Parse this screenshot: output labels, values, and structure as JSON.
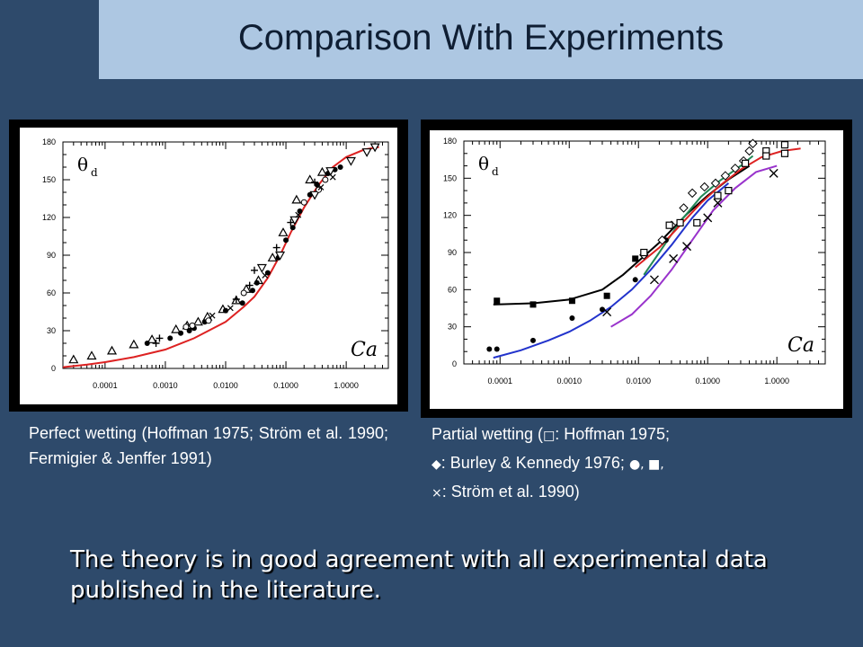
{
  "slide": {
    "title": "Comparison With Experiments",
    "conclusion": "The theory is in good agreement with all experimental data published in the literature."
  },
  "captions": {
    "left": "Perfect wetting (Hoffman 1975; Ström et al. 1990; Fermigier & Jenffer 1991)",
    "right": {
      "line1_prefix": "Partial wetting (",
      "line1_symbol": "□",
      "line1_suffix": ": Hoffman 1975;",
      "line2_symbol": "◆",
      "line2_text": ": Burley & Kennedy 1976;",
      "line2_symbols": "●, ■,",
      "line3_symbol": "×",
      "line3_text": ": Ström et al. 1990)"
    }
  },
  "chart_data": [
    {
      "type": "scatter",
      "xscale": "log",
      "xlim": [
        2e-05,
        5
      ],
      "ylim": [
        0,
        180
      ],
      "xticks": [
        0.0001,
        0.001,
        0.01,
        0.1,
        1
      ],
      "xtick_labels": [
        "0.0001",
        "0.0010",
        "0.0100",
        "0.1000",
        "1.0000"
      ],
      "yticks": [
        0,
        30,
        60,
        90,
        120,
        150,
        180
      ],
      "ytick_labels": [
        "0",
        "30",
        "60",
        "90",
        "120",
        "150",
        "180"
      ],
      "ylabel": "θ",
      "ylabel_sub": "d",
      "xlabel": "Ca",
      "grid": false,
      "series": [
        {
          "name": "",
          "marker": "triangle-up",
          "color": "#000000",
          "points": [
            [
              3e-05,
              7
            ],
            [
              6e-05,
              10
            ],
            [
              0.00013,
              14
            ],
            [
              0.0003,
              19
            ],
            [
              0.0006,
              23
            ],
            [
              0.0015,
              31
            ],
            [
              0.0023,
              34
            ],
            [
              0.0035,
              37
            ],
            [
              0.005,
              41
            ],
            [
              0.009,
              47
            ],
            [
              0.015,
              54
            ],
            [
              0.022,
              63
            ],
            [
              0.035,
              70
            ],
            [
              0.06,
              88
            ],
            [
              0.09,
              108
            ],
            [
              0.15,
              134
            ],
            [
              0.25,
              150
            ],
            [
              0.4,
              156
            ]
          ]
        },
        {
          "name": "",
          "marker": "circle",
          "color": "#000000",
          "points": [
            [
              0.0005,
              20
            ],
            [
              0.0012,
              24
            ],
            [
              0.0018,
              28
            ],
            [
              0.0025,
              30
            ],
            [
              0.003,
              32
            ],
            [
              0.0045,
              37
            ],
            [
              0.01,
              46
            ],
            [
              0.019,
              52
            ],
            [
              0.028,
              62
            ],
            [
              0.033,
              68
            ],
            [
              0.05,
              76
            ],
            [
              0.075,
              88
            ],
            [
              0.1,
              102
            ],
            [
              0.13,
              112
            ],
            [
              0.17,
              125
            ],
            [
              0.25,
              138
            ],
            [
              0.33,
              146
            ],
            [
              0.5,
              155
            ],
            [
              0.65,
              158
            ],
            [
              0.8,
              160
            ]
          ]
        },
        {
          "name": "",
          "marker": "plus",
          "color": "#000000",
          "points": [
            [
              0.0007,
              20
            ],
            [
              0.0008,
              24
            ],
            [
              0.015,
              55
            ],
            [
              0.025,
              66
            ],
            [
              0.03,
              78
            ],
            [
              0.07,
              96
            ],
            [
              0.12,
              116
            ],
            [
              0.3,
              148
            ]
          ]
        },
        {
          "name": "",
          "marker": "triangle-down",
          "color": "#000000",
          "points": [
            [
              0.04,
              80
            ],
            [
              0.08,
              90
            ],
            [
              0.14,
              118
            ],
            [
              0.3,
              138
            ],
            [
              0.55,
              157
            ],
            [
              1.2,
              165
            ],
            [
              2.2,
              172
            ],
            [
              3,
              176
            ]
          ]
        },
        {
          "name": "",
          "marker": "circle-open",
          "color": "#000000",
          "points": [
            [
              0.0022,
              33
            ],
            [
              0.0028,
              34
            ],
            [
              0.0052,
              38
            ],
            [
              0.02,
              60
            ],
            [
              0.2,
              132
            ],
            [
              0.35,
              142
            ],
            [
              0.45,
              150
            ]
          ]
        },
        {
          "name": "",
          "marker": "cross",
          "color": "#000000",
          "points": [
            [
              0.006,
              42
            ],
            [
              0.012,
              48
            ],
            [
              0.045,
              74
            ],
            [
              0.16,
              122
            ],
            [
              0.38,
              144
            ],
            [
              0.6,
              152
            ]
          ]
        }
      ],
      "curves": [
        {
          "name": "",
          "color": "#dd2222",
          "points": [
            [
              2e-05,
              1
            ],
            [
              5e-05,
              3
            ],
            [
              0.0001,
              5
            ],
            [
              0.0003,
              9
            ],
            [
              0.001,
              15
            ],
            [
              0.003,
              24
            ],
            [
              0.01,
              37
            ],
            [
              0.02,
              49
            ],
            [
              0.03,
              57
            ],
            [
              0.05,
              72
            ],
            [
              0.08,
              90
            ],
            [
              0.12,
              108
            ],
            [
              0.2,
              128
            ],
            [
              0.35,
              146
            ],
            [
              0.6,
              160
            ],
            [
              1,
              168
            ],
            [
              2,
              174
            ],
            [
              3.5,
              176
            ]
          ]
        }
      ]
    },
    {
      "type": "scatter",
      "xscale": "log",
      "xlim": [
        3e-05,
        5
      ],
      "ylim": [
        0,
        180
      ],
      "xticks": [
        0.0001,
        0.001,
        0.01,
        0.1,
        1
      ],
      "xtick_labels": [
        "0.0001",
        "0.0010",
        "0.0100",
        "0.1000",
        "1.0000"
      ],
      "yticks": [
        0,
        30,
        60,
        90,
        120,
        150,
        180
      ],
      "ytick_labels": [
        "0",
        "30",
        "60",
        "90",
        "120",
        "150",
        "180"
      ],
      "ylabel": "θ",
      "ylabel_sub": "d",
      "xlabel": "Ca",
      "grid": false,
      "series": [
        {
          "name": "",
          "marker": "square",
          "color": "#000000",
          "points": [
            [
              9e-05,
              51
            ],
            [
              0.0003,
              48
            ],
            [
              0.0011,
              51
            ],
            [
              0.0035,
              55
            ],
            [
              0.009,
              85
            ]
          ]
        },
        {
          "name": "",
          "marker": "circle",
          "color": "#000000",
          "points": [
            [
              7e-05,
              12
            ],
            [
              9e-05,
              12
            ],
            [
              0.0003,
              19
            ],
            [
              0.0011,
              37
            ],
            [
              0.003,
              44
            ],
            [
              0.009,
              68
            ],
            [
              0.025,
              100
            ]
          ]
        },
        {
          "name": "",
          "marker": "diamond",
          "color": "#000000",
          "points": [
            [
              0.012,
              88
            ],
            [
              0.022,
              100
            ],
            [
              0.03,
              112
            ],
            [
              0.045,
              126
            ],
            [
              0.06,
              138
            ],
            [
              0.09,
              143
            ],
            [
              0.13,
              146
            ],
            [
              0.18,
              152
            ],
            [
              0.25,
              158
            ],
            [
              0.33,
              164
            ],
            [
              0.4,
              172
            ],
            [
              0.45,
              178
            ]
          ]
        },
        {
          "name": "",
          "marker": "square-open",
          "color": "#000000",
          "points": [
            [
              0.012,
              90
            ],
            [
              0.028,
              112
            ],
            [
              0.04,
              114
            ],
            [
              0.07,
              114
            ],
            [
              0.14,
              136
            ],
            [
              0.2,
              140
            ],
            [
              0.35,
              162
            ],
            [
              0.7,
              172
            ],
            [
              0.7,
              168
            ],
            [
              1.3,
              170
            ],
            [
              1.3,
              177
            ]
          ]
        },
        {
          "name": "",
          "marker": "x",
          "color": "#000000",
          "points": [
            [
              0.0035,
              42
            ],
            [
              0.017,
              68
            ],
            [
              0.032,
              85
            ],
            [
              0.05,
              95
            ],
            [
              0.1,
              118
            ],
            [
              0.14,
              130
            ],
            [
              0.9,
              154
            ]
          ]
        }
      ],
      "curves": [
        {
          "name": "",
          "color": "#000000",
          "points": [
            [
              8e-05,
              48
            ],
            [
              0.0003,
              49
            ],
            [
              0.001,
              52
            ],
            [
              0.003,
              60
            ],
            [
              0.006,
              72
            ],
            [
              0.01,
              83
            ],
            [
              0.02,
              98
            ],
            [
              0.05,
              121
            ],
            [
              0.1,
              136
            ],
            [
              0.2,
              149
            ],
            [
              0.4,
              160
            ]
          ]
        },
        {
          "name": "",
          "color": "#2233cc",
          "points": [
            [
              8e-05,
              5
            ],
            [
              0.0002,
              11
            ],
            [
              0.0005,
              19
            ],
            [
              0.001,
              26
            ],
            [
              0.002,
              35
            ],
            [
              0.004,
              46
            ],
            [
              0.008,
              60
            ],
            [
              0.015,
              76
            ],
            [
              0.03,
              96
            ],
            [
              0.06,
              118
            ],
            [
              0.1,
              132
            ],
            [
              0.2,
              146
            ]
          ]
        },
        {
          "name": "",
          "color": "#228855",
          "points": [
            [
              0.012,
              72
            ],
            [
              0.02,
              90
            ],
            [
              0.04,
              115
            ],
            [
              0.08,
              135
            ],
            [
              0.15,
              148
            ],
            [
              0.3,
              160
            ],
            [
              0.45,
              168
            ]
          ]
        },
        {
          "name": "",
          "color": "#dd2222",
          "points": [
            [
              0.009,
              78
            ],
            [
              0.02,
              94
            ],
            [
              0.04,
              112
            ],
            [
              0.08,
              130
            ],
            [
              0.15,
              144
            ],
            [
              0.3,
              157
            ],
            [
              0.6,
              167
            ],
            [
              1.2,
              172
            ],
            [
              2.2,
              174
            ]
          ]
        },
        {
          "name": "",
          "color": "#9933cc",
          "points": [
            [
              0.004,
              30
            ],
            [
              0.008,
              40
            ],
            [
              0.015,
              55
            ],
            [
              0.03,
              76
            ],
            [
              0.06,
              100
            ],
            [
              0.12,
              124
            ],
            [
              0.25,
              142
            ],
            [
              0.5,
              155
            ],
            [
              1,
              160
            ]
          ]
        }
      ]
    }
  ]
}
